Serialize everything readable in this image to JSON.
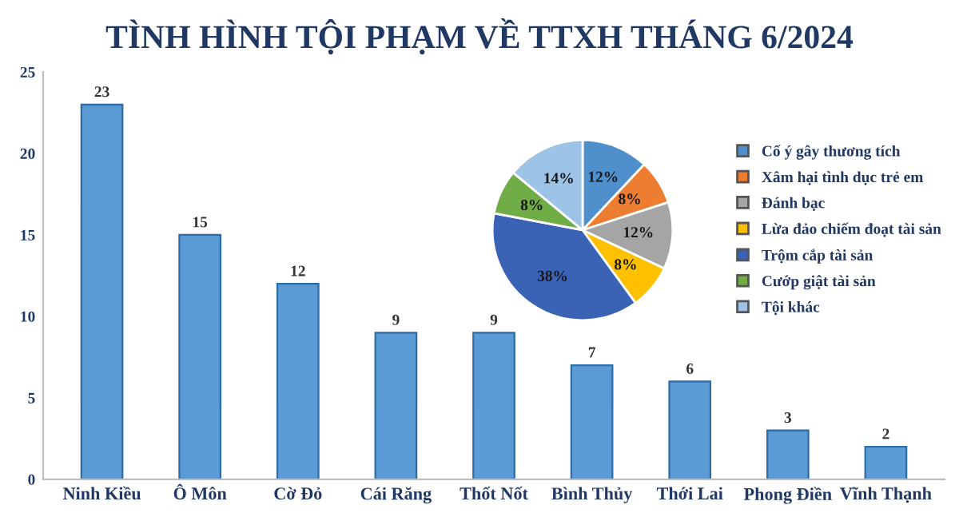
{
  "chart_data": [
    {
      "type": "bar",
      "title": "TÌNH HÌNH TỘI PHẠM VỀ TTXH THÁNG 6/2024",
      "categories": [
        "Ninh Kiều",
        "Ô Môn",
        "Cờ Đỏ",
        "Cái Răng",
        "Thốt Nốt",
        "Bình Thủy",
        "Thới Lai",
        "Phong Điền",
        "Vĩnh Thạnh"
      ],
      "values": [
        23,
        15,
        12,
        9,
        9,
        7,
        6,
        3,
        2
      ],
      "color": "#5b9bd5",
      "ylim": [
        0,
        25
      ],
      "yticks": [
        0,
        5,
        10,
        15,
        20,
        25
      ],
      "grid": false,
      "data_labels": true
    },
    {
      "type": "pie",
      "categories": [
        "Cố ý gây thương tích",
        "Xâm hại tình dục trẻ em",
        "Đánh bạc",
        "Lừa đảo chiếm đoạt tài sản",
        "Trộm cắp tài sản",
        "Cướp giật tài sản",
        "Tội khác"
      ],
      "values": [
        12,
        8,
        12,
        8,
        38,
        8,
        14
      ],
      "colors": [
        "#4f8fcc",
        "#ed7d31",
        "#a5a5a5",
        "#ffc000",
        "#3a62b5",
        "#70ad47",
        "#9dc3e6"
      ],
      "value_labels": [
        "12%",
        "8%",
        "12%",
        "8%",
        "38%",
        "8%",
        "14%"
      ],
      "legend": "right"
    }
  ]
}
